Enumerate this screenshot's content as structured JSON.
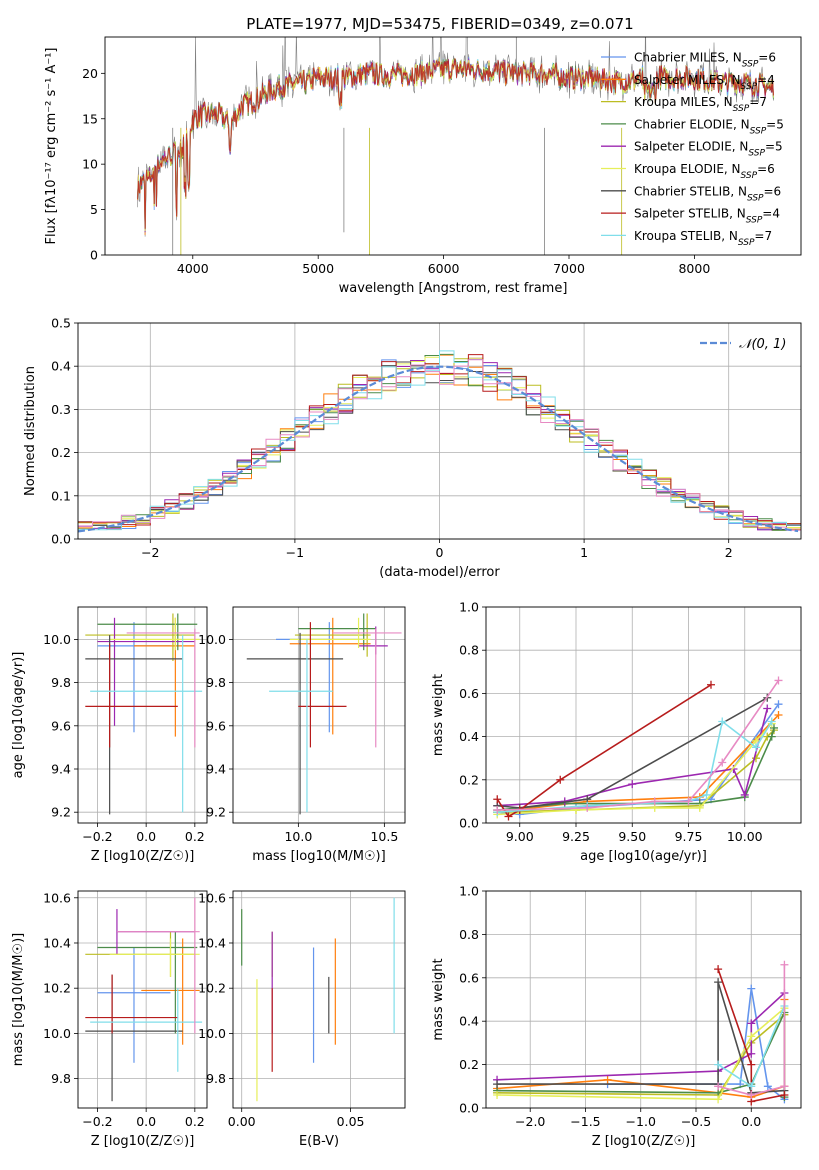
{
  "figure": {
    "title": "PLATE=1977, MJD=53475, FIBERID=0349, z=0.071"
  },
  "colors": {
    "palette": [
      "#6495ed",
      "#ff7f0e",
      "#bcbd22",
      "#4c8c4a",
      "#9c27b0",
      "#e6ef5a",
      "#4d4d4d",
      "#b71c1c",
      "#80deea",
      "#e78ac3",
      "#808080"
    ]
  },
  "chart_data": [
    {
      "id": "spectrum",
      "type": "line",
      "title": "PLATE=1977, MJD=53475, FIBERID=0349, z=0.071",
      "xlabel": "wavelength [Angstrom, rest frame]",
      "ylabel": "Flux [fλ10⁻¹⁷ erg cm⁻² s⁻¹ A⁻¹]",
      "xlim": [
        3300,
        8850
      ],
      "ylim": [
        0,
        24
      ],
      "xticks": [
        4000,
        5000,
        6000,
        7000,
        8000
      ],
      "yticks": [
        0,
        5,
        10,
        15,
        20
      ],
      "grid": false,
      "legend_position": "upper-right",
      "continuum_knots": {
        "x": [
          3560,
          3650,
          3750,
          3900,
          3960,
          4000,
          4100,
          4200,
          4300,
          4400,
          4500,
          4600,
          4700,
          4800,
          4900,
          5000,
          5200,
          5400,
          5600,
          5800,
          6000,
          6200,
          6400,
          6600,
          6800,
          7000,
          7200,
          7400,
          7600,
          7800,
          8000,
          8200,
          8400,
          8600
        ],
        "y": [
          7.5,
          8.5,
          10.5,
          11.5,
          13,
          15,
          15.5,
          15.5,
          14.5,
          16.5,
          17,
          18,
          18.5,
          18.8,
          19,
          19.5,
          19.5,
          20,
          19.8,
          20,
          20.5,
          20.5,
          20.3,
          20,
          20,
          19.5,
          19.5,
          19,
          19.5,
          19.5,
          19.5,
          19,
          19,
          18.5
        ]
      },
      "series": [
        {
          "name": "Chabrier MILES, N_SSP=6"
        },
        {
          "name": "Salpeter MILES, N_SSP=4"
        },
        {
          "name": "Kroupa MILES, N_SSP=7"
        },
        {
          "name": "Chabrier ELODIE, N_SSP=5"
        },
        {
          "name": "Salpeter ELODIE, N_SSP=5"
        },
        {
          "name": "Kroupa ELODIE, N_SSP=6"
        },
        {
          "name": "Chabrier STELIB, N_SSP=6"
        },
        {
          "name": "Salpeter STELIB, N_SSP=4"
        },
        {
          "name": "Kroupa STELIB, N_SSP=7"
        }
      ]
    },
    {
      "id": "residuals",
      "type": "histogram",
      "xlabel": "(data-model)/error",
      "ylabel": "Normed distribution",
      "xlim": [
        -2.5,
        2.5
      ],
      "ylim": [
        0,
        0.5
      ],
      "xticks": [
        -2,
        -1,
        0,
        1,
        2
      ],
      "yticks": [
        0.0,
        0.1,
        0.2,
        0.3,
        0.4,
        0.5
      ],
      "grid": true,
      "legend_position": "upper-right",
      "legend": "𝒩(0, 1)",
      "bin_width": 0.1
    },
    {
      "id": "age_vs_Z",
      "type": "errorbar",
      "xlabel": "Z [log10(Z/Z☉)]",
      "ylabel": "age [log10(age/yr)]",
      "xlim": [
        -0.28,
        0.25
      ],
      "ylim": [
        9.15,
        10.15
      ],
      "xticks": [
        -0.2,
        0.0,
        0.2
      ],
      "yticks": [
        9.2,
        9.4,
        9.6,
        9.8,
        10.0
      ],
      "grid": true,
      "points": [
        {
          "x": -0.05,
          "y": 9.97,
          "xlo": -0.2,
          "xhi": 0.1,
          "ylo": 9.57,
          "yhi": 10.08
        },
        {
          "x": 0.12,
          "y": 9.97,
          "xlo": -0.05,
          "xhi": 0.2,
          "ylo": 9.55,
          "yhi": 10.1
        },
        {
          "x": 0.11,
          "y": 10.02,
          "xlo": -0.25,
          "xhi": 0.2,
          "ylo": 9.9,
          "yhi": 10.12
        },
        {
          "x": 0.13,
          "y": 10.07,
          "xlo": -0.2,
          "xhi": 0.21,
          "ylo": 9.95,
          "yhi": 10.12
        },
        {
          "x": -0.13,
          "y": 9.99,
          "xlo": -0.2,
          "xhi": 0.2,
          "ylo": 9.6,
          "yhi": 10.1
        },
        {
          "x": 0.12,
          "y": 10.0,
          "xlo": -0.15,
          "xhi": 0.22,
          "ylo": 9.95,
          "yhi": 10.1
        },
        {
          "x": -0.15,
          "y": 9.91,
          "xlo": -0.25,
          "xhi": 0.15,
          "ylo": 9.19,
          "yhi": 10.02
        },
        {
          "x": -0.15,
          "y": 9.69,
          "xlo": -0.25,
          "xhi": 0.13,
          "ylo": 9.5,
          "yhi": 9.98
        },
        {
          "x": 0.15,
          "y": 9.76,
          "xlo": -0.23,
          "xhi": 0.23,
          "ylo": 9.2,
          "yhi": 10.02
        },
        {
          "x": 0.2,
          "y": 10.03,
          "xlo": -0.08,
          "xhi": 0.22,
          "ylo": 9.5,
          "yhi": 10.05
        }
      ]
    },
    {
      "id": "age_vs_mass",
      "type": "errorbar",
      "xlabel": "mass [log10(M/M☉)]",
      "ylabel": "",
      "xlim": [
        9.62,
        10.62
      ],
      "ylim": [
        9.15,
        10.15
      ],
      "xticks": [
        10.0,
        10.5
      ],
      "yticks": [
        9.2,
        9.4,
        9.6,
        9.8,
        10.0
      ],
      "grid": true,
      "points": [
        {
          "x": 10.18,
          "y": 10.0,
          "xlo": 9.87,
          "xhi": 10.38,
          "ylo": 9.57,
          "yhi": 10.08
        },
        {
          "x": 10.2,
          "y": 9.98,
          "xlo": 9.95,
          "xhi": 10.42,
          "ylo": 9.56,
          "yhi": 10.1
        },
        {
          "x": 10.4,
          "y": 10.02,
          "xlo": 9.98,
          "xhi": 10.42,
          "ylo": 9.92,
          "yhi": 10.12
        },
        {
          "x": 10.38,
          "y": 10.05,
          "xlo": 10.0,
          "xhi": 10.45,
          "ylo": 9.95,
          "yhi": 10.12
        },
        {
          "x": 10.45,
          "y": 9.97,
          "xlo": 10.35,
          "xhi": 10.52,
          "ylo": 9.93,
          "yhi": 10.06
        },
        {
          "x": 10.35,
          "y": 10.0,
          "xlo": 9.95,
          "xhi": 10.42,
          "ylo": 9.96,
          "yhi": 10.1
        },
        {
          "x": 10.01,
          "y": 9.91,
          "xlo": 9.7,
          "xhi": 10.26,
          "ylo": 9.19,
          "yhi": 10.03
        },
        {
          "x": 10.07,
          "y": 9.69,
          "xlo": 10.0,
          "xhi": 10.28,
          "ylo": 9.5,
          "yhi": 10.08
        },
        {
          "x": 10.05,
          "y": 9.76,
          "xlo": 9.83,
          "xhi": 10.2,
          "ylo": 9.2,
          "yhi": 10.0
        },
        {
          "x": 10.45,
          "y": 10.03,
          "xlo": 10.2,
          "xhi": 10.6,
          "ylo": 9.5,
          "yhi": 10.05
        }
      ]
    },
    {
      "id": "weight_vs_age",
      "type": "line",
      "xlabel": "age  [log10(age/yr)]",
      "ylabel": "mass weight",
      "xlim": [
        8.85,
        10.25
      ],
      "ylim": [
        0,
        1
      ],
      "xticks": [
        9.0,
        9.25,
        9.5,
        9.75,
        10.0
      ],
      "yticks": [
        0.0,
        0.2,
        0.4,
        0.6,
        0.8,
        1.0
      ],
      "grid": true,
      "series": [
        {
          "x": [
            8.9,
            9.0,
            9.25,
            9.85,
            10.15
          ],
          "y": [
            0.05,
            0.04,
            0.07,
            0.11,
            0.55
          ]
        },
        {
          "x": [
            8.9,
            9.3,
            9.8,
            10.15
          ],
          "y": [
            0.05,
            0.1,
            0.12,
            0.5
          ]
        },
        {
          "x": [
            8.9,
            9.25,
            9.8,
            10.05,
            10.1,
            10.13
          ],
          "y": [
            0.05,
            0.06,
            0.08,
            0.3,
            0.4,
            0.43
          ]
        },
        {
          "x": [
            8.9,
            9.2,
            9.8,
            10.0,
            10.12,
            10.13
          ],
          "y": [
            0.06,
            0.09,
            0.09,
            0.12,
            0.4,
            0.44
          ]
        },
        {
          "x": [
            8.9,
            9.2,
            9.5,
            9.95,
            10.0,
            10.1
          ],
          "y": [
            0.08,
            0.1,
            0.18,
            0.25,
            0.13,
            0.53
          ]
        },
        {
          "x": [
            8.9,
            9.25,
            9.6,
            9.8,
            10.05,
            10.12
          ],
          "y": [
            0.04,
            0.06,
            0.07,
            0.07,
            0.38,
            0.46
          ]
        },
        {
          "x": [
            8.9,
            9.0,
            9.3,
            10.1
          ],
          "y": [
            0.08,
            0.07,
            0.11,
            0.58
          ]
        },
        {
          "x": [
            8.9,
            8.95,
            9.0,
            9.18,
            9.85
          ],
          "y": [
            0.11,
            0.03,
            0.06,
            0.2,
            0.64
          ]
        },
        {
          "x": [
            8.9,
            9.3,
            9.75,
            9.83,
            9.9,
            10.05,
            10.12
          ],
          "y": [
            0.05,
            0.08,
            0.1,
            0.13,
            0.47,
            0.35,
            0.47
          ]
        },
        {
          "x": [
            8.9,
            9.3,
            9.6,
            9.75,
            9.9,
            10.15
          ],
          "y": [
            0.06,
            0.07,
            0.1,
            0.1,
            0.28,
            0.66
          ]
        }
      ]
    },
    {
      "id": "mass_vs_Z",
      "type": "errorbar",
      "xlabel": "Z [log10(Z/Z☉)]",
      "ylabel": "mass [log10(M/M☉)]",
      "xlim": [
        -0.28,
        0.25
      ],
      "ylim": [
        9.67,
        10.63
      ],
      "xticks": [
        -0.2,
        0.0,
        0.2
      ],
      "yticks": [
        9.8,
        10.0,
        10.2,
        10.4,
        10.6
      ],
      "grid": true,
      "points": [
        {
          "x": -0.05,
          "y": 10.18,
          "xlo": -0.2,
          "xhi": 0.1,
          "ylo": 9.87,
          "yhi": 10.38
        },
        {
          "x": 0.15,
          "y": 10.19,
          "xlo": -0.02,
          "xhi": 0.22,
          "ylo": 9.95,
          "yhi": 10.42
        },
        {
          "x": 0.1,
          "y": 10.35,
          "xlo": -0.25,
          "xhi": 0.2,
          "ylo": 10.25,
          "yhi": 10.45
        },
        {
          "x": 0.12,
          "y": 10.38,
          "xlo": -0.2,
          "xhi": 0.21,
          "ylo": 10.0,
          "yhi": 10.45
        },
        {
          "x": -0.12,
          "y": 10.45,
          "xlo": -0.12,
          "xhi": 0.2,
          "ylo": 10.35,
          "yhi": 10.55
        },
        {
          "x": 0.1,
          "y": 10.35,
          "xlo": -0.15,
          "xhi": 0.22,
          "ylo": 10.25,
          "yhi": 10.42
        },
        {
          "x": -0.14,
          "y": 10.01,
          "xlo": -0.25,
          "xhi": 0.15,
          "ylo": 9.7,
          "yhi": 10.26
        },
        {
          "x": -0.14,
          "y": 10.07,
          "xlo": -0.25,
          "xhi": 0.13,
          "ylo": 10.0,
          "yhi": 10.26
        },
        {
          "x": 0.13,
          "y": 10.05,
          "xlo": -0.23,
          "xhi": 0.23,
          "ylo": 9.83,
          "yhi": 10.2
        },
        {
          "x": 0.2,
          "y": 10.45,
          "xlo": -0.12,
          "xhi": 0.22,
          "ylo": 10.0,
          "yhi": 10.6
        }
      ]
    },
    {
      "id": "mass_vs_EBV",
      "type": "errorbar",
      "xlabel": "E(B-V)",
      "ylabel": "",
      "xlim": [
        -0.004,
        0.075
      ],
      "ylim": [
        9.67,
        10.63
      ],
      "xticks": [
        0.0,
        0.05
      ],
      "yticks": [
        9.8,
        10.0,
        10.2,
        10.4,
        10.6
      ],
      "grid": true,
      "points": [
        {
          "x": 0.033,
          "ylo": 9.87,
          "yhi": 10.38
        },
        {
          "x": 0.043,
          "ylo": 9.95,
          "yhi": 10.42
        },
        {
          "x": 0.014,
          "ylo": 10.25,
          "yhi": 10.45
        },
        {
          "x": 0.0,
          "ylo": 10.3,
          "yhi": 10.55
        },
        {
          "x": 0.014,
          "ylo": 10.0,
          "yhi": 10.45
        },
        {
          "x": 0.007,
          "ylo": 9.7,
          "yhi": 10.24
        },
        {
          "x": 0.04,
          "ylo": 10.0,
          "yhi": 10.25
        },
        {
          "x": 0.014,
          "ylo": 9.83,
          "yhi": 10.2
        },
        {
          "x": 0.07,
          "ylo": 10.0,
          "yhi": 10.6
        }
      ]
    },
    {
      "id": "weight_vs_Z",
      "type": "line",
      "xlabel": "Z [log10(Z/Z☉)]",
      "ylabel": "mass weight",
      "xlim": [
        -2.4,
        0.45
      ],
      "ylim": [
        0,
        1
      ],
      "xticks": [
        -2.0,
        -1.5,
        -1.0,
        -0.5,
        0.0
      ],
      "yticks": [
        0.0,
        0.2,
        0.4,
        0.6,
        0.8,
        1.0
      ],
      "grid": true,
      "series": [
        {
          "x": [
            -1.3,
            -0.3,
            -0.1,
            0.0,
            0.15,
            0.3
          ],
          "y": [
            0.11,
            0.11,
            0.11,
            0.55,
            0.1,
            0.04
          ]
        },
        {
          "x": [
            -2.3,
            -1.3,
            -0.3,
            0.0,
            0.3,
            0.3
          ],
          "y": [
            0.09,
            0.13,
            0.07,
            0.05,
            0.1,
            0.5
          ]
        },
        {
          "x": [
            -2.3,
            -0.3,
            0.0,
            0.3
          ],
          "y": [
            0.07,
            0.06,
            0.3,
            0.43
          ]
        },
        {
          "x": [
            -2.3,
            -0.3,
            0.0,
            0.3,
            0.3
          ],
          "y": [
            0.08,
            0.07,
            0.11,
            0.44,
            0.05
          ]
        },
        {
          "x": [
            -2.3,
            -0.3,
            0.0,
            0.0,
            0.3
          ],
          "y": [
            0.13,
            0.17,
            0.25,
            0.39,
            0.53
          ]
        },
        {
          "x": [
            -2.3,
            -0.3,
            0.0,
            0.3
          ],
          "y": [
            0.06,
            0.04,
            0.33,
            0.46
          ]
        },
        {
          "x": [
            -2.3,
            -0.3,
            -0.3,
            0.0,
            0.3
          ],
          "y": [
            0.11,
            0.11,
            0.58,
            0.07,
            0.08
          ]
        },
        {
          "x": [
            -0.3,
            0.0,
            0.0,
            0.3
          ],
          "y": [
            0.64,
            0.2,
            0.03,
            0.06
          ]
        },
        {
          "x": [
            -0.3,
            0.0,
            0.3
          ],
          "y": [
            0.2,
            0.1,
            0.47
          ]
        },
        {
          "x": [
            -0.3,
            0.0,
            0.3,
            0.3
          ],
          "y": [
            0.1,
            0.06,
            0.1,
            0.66
          ]
        }
      ]
    }
  ]
}
